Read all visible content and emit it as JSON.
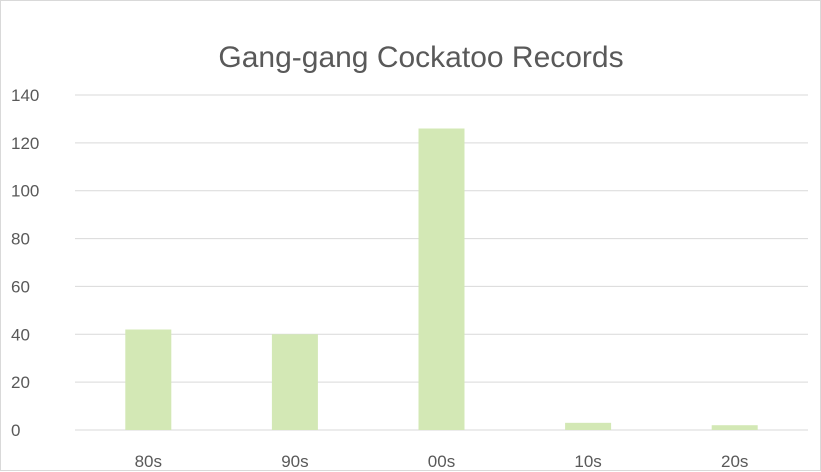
{
  "chart_data": {
    "type": "bar",
    "title": "Gang-gang Cockatoo Records",
    "categories": [
      "80s",
      "90s",
      "00s",
      "10s",
      "20s"
    ],
    "values": [
      42,
      40,
      126,
      3,
      2
    ],
    "ylim": [
      0,
      140
    ],
    "yticks": [
      0,
      20,
      40,
      60,
      80,
      100,
      120,
      140
    ],
    "grid": true,
    "legend": "none",
    "colors": {
      "bar": "#d3e8b5",
      "grid": "#d9d9d9",
      "text": "#595959",
      "frame": "#d9d9d9"
    }
  }
}
